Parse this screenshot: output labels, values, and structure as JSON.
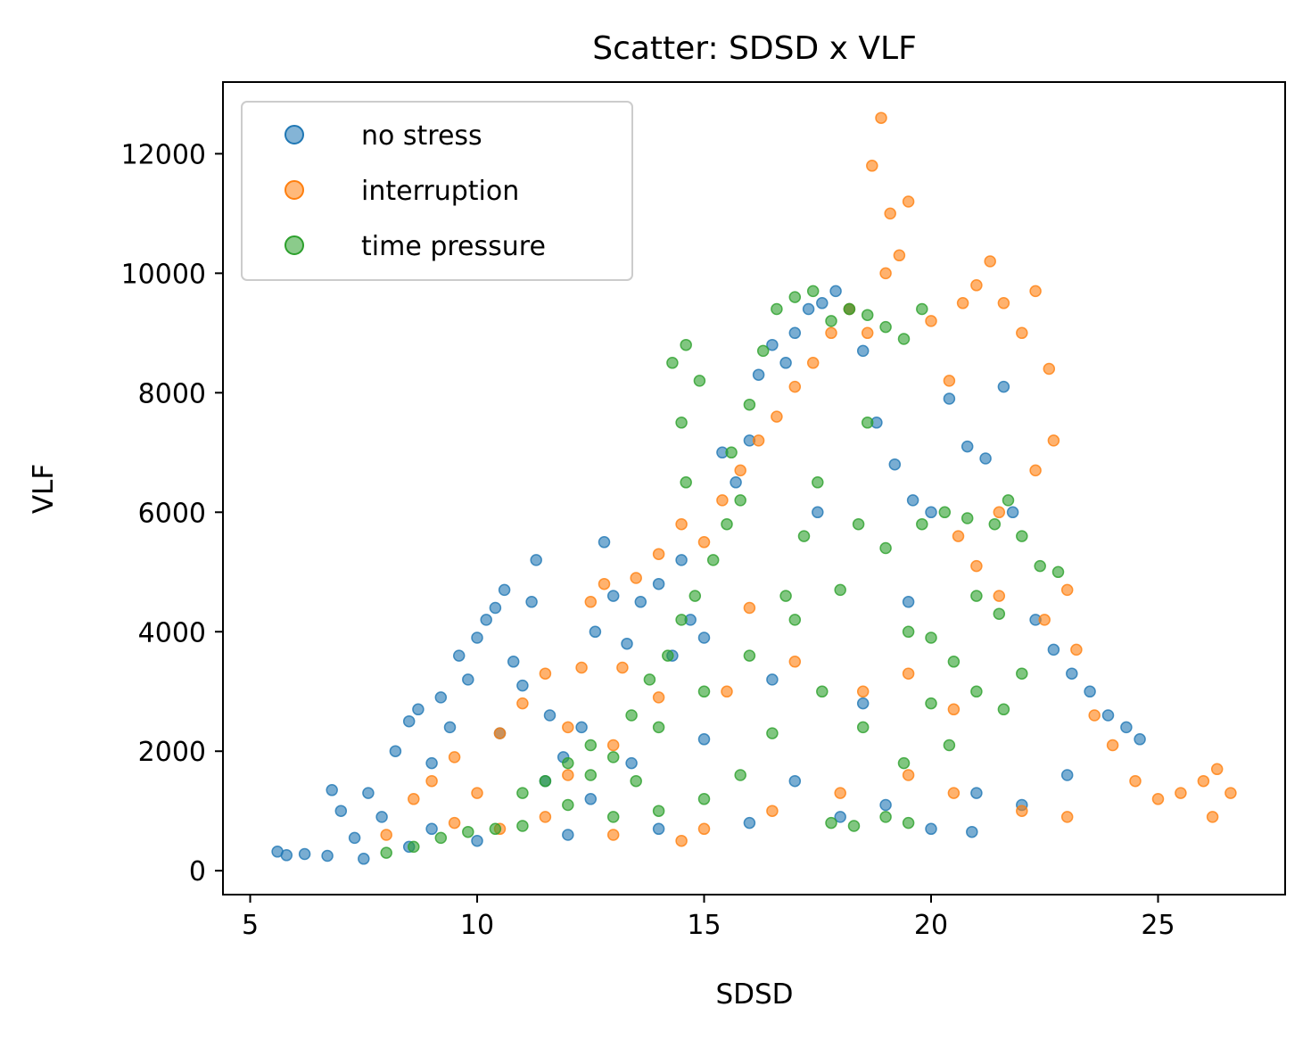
{
  "chart_data": {
    "type": "scatter",
    "title": "Scatter: SDSD x VLF",
    "xlabel": "SDSD",
    "ylabel": "VLF",
    "xlim": [
      4.4,
      27.8
    ],
    "ylim": [
      -400,
      13200
    ],
    "xticks": [
      5,
      10,
      15,
      20,
      25
    ],
    "yticks": [
      0,
      2000,
      4000,
      6000,
      8000,
      10000,
      12000
    ],
    "grid": false,
    "legend_position": "top-left",
    "series": [
      {
        "name": "no stress",
        "color": "#1f77b4",
        "points": [
          [
            5.6,
            320
          ],
          [
            5.8,
            260
          ],
          [
            6.2,
            280
          ],
          [
            6.7,
            250
          ],
          [
            6.8,
            1350
          ],
          [
            7.0,
            1000
          ],
          [
            7.3,
            550
          ],
          [
            7.5,
            200
          ],
          [
            7.6,
            1300
          ],
          [
            7.9,
            900
          ],
          [
            8.2,
            2000
          ],
          [
            8.5,
            2500
          ],
          [
            8.7,
            2700
          ],
          [
            9.0,
            1800
          ],
          [
            9.2,
            2900
          ],
          [
            9.4,
            2400
          ],
          [
            9.6,
            3600
          ],
          [
            9.8,
            3200
          ],
          [
            10.0,
            3900
          ],
          [
            10.2,
            4200
          ],
          [
            10.4,
            4400
          ],
          [
            10.6,
            4700
          ],
          [
            10.8,
            3500
          ],
          [
            11.0,
            3100
          ],
          [
            11.2,
            4500
          ],
          [
            11.3,
            5200
          ],
          [
            11.6,
            2600
          ],
          [
            11.9,
            1900
          ],
          [
            12.3,
            2400
          ],
          [
            12.6,
            4000
          ],
          [
            12.8,
            5500
          ],
          [
            13.0,
            4600
          ],
          [
            13.3,
            3800
          ],
          [
            13.6,
            4500
          ],
          [
            14.0,
            4800
          ],
          [
            14.3,
            3600
          ],
          [
            14.7,
            4200
          ],
          [
            15.0,
            3900
          ],
          [
            15.4,
            7000
          ],
          [
            15.7,
            6500
          ],
          [
            16.0,
            7200
          ],
          [
            16.2,
            8300
          ],
          [
            16.5,
            8800
          ],
          [
            16.8,
            8500
          ],
          [
            17.0,
            9000
          ],
          [
            17.3,
            9400
          ],
          [
            17.6,
            9500
          ],
          [
            17.9,
            9700
          ],
          [
            18.2,
            9400
          ],
          [
            18.5,
            8700
          ],
          [
            18.8,
            7500
          ],
          [
            19.2,
            6800
          ],
          [
            19.6,
            6200
          ],
          [
            20.0,
            6000
          ],
          [
            20.4,
            7900
          ],
          [
            20.8,
            7100
          ],
          [
            21.2,
            6900
          ],
          [
            21.6,
            8100
          ],
          [
            21.8,
            6000
          ],
          [
            22.3,
            4200
          ],
          [
            22.7,
            3700
          ],
          [
            23.1,
            3300
          ],
          [
            23.5,
            3000
          ],
          [
            23.9,
            2600
          ],
          [
            24.3,
            2400
          ],
          [
            24.6,
            2200
          ],
          [
            8.5,
            400
          ],
          [
            10.0,
            500
          ],
          [
            12.0,
            600
          ],
          [
            14.0,
            700
          ],
          [
            16.0,
            800
          ],
          [
            18.0,
            900
          ],
          [
            20.0,
            700
          ],
          [
            20.9,
            650
          ],
          [
            12.5,
            1200
          ],
          [
            13.4,
            1800
          ],
          [
            17.0,
            1500
          ],
          [
            19.0,
            1100
          ],
          [
            9.0,
            700
          ],
          [
            11.5,
            1500
          ],
          [
            15.0,
            2200
          ],
          [
            16.5,
            3200
          ],
          [
            18.5,
            2800
          ],
          [
            21.0,
            1300
          ],
          [
            22.0,
            1100
          ],
          [
            23.0,
            1600
          ],
          [
            14.5,
            5200
          ],
          [
            17.5,
            6000
          ],
          [
            19.5,
            4500
          ],
          [
            10.5,
            2300
          ]
        ]
      },
      {
        "name": "interruption",
        "color": "#ff7f0e",
        "points": [
          [
            8.0,
            600
          ],
          [
            8.6,
            1200
          ],
          [
            9.0,
            1500
          ],
          [
            9.5,
            800
          ],
          [
            10.0,
            1300
          ],
          [
            10.5,
            2300
          ],
          [
            11.0,
            2800
          ],
          [
            11.5,
            3300
          ],
          [
            12.0,
            2400
          ],
          [
            12.3,
            3400
          ],
          [
            12.5,
            4500
          ],
          [
            12.8,
            4800
          ],
          [
            13.2,
            3400
          ],
          [
            13.5,
            4900
          ],
          [
            14.0,
            5300
          ],
          [
            14.5,
            5800
          ],
          [
            15.0,
            5500
          ],
          [
            15.4,
            6200
          ],
          [
            15.8,
            6700
          ],
          [
            16.2,
            7200
          ],
          [
            16.6,
            7600
          ],
          [
            17.0,
            8100
          ],
          [
            17.4,
            8500
          ],
          [
            17.8,
            9000
          ],
          [
            18.2,
            9400
          ],
          [
            18.6,
            9000
          ],
          [
            18.7,
            11800
          ],
          [
            18.9,
            12600
          ],
          [
            19.1,
            11000
          ],
          [
            19.3,
            10300
          ],
          [
            19.5,
            11200
          ],
          [
            19.0,
            10000
          ],
          [
            20.0,
            9200
          ],
          [
            20.4,
            8200
          ],
          [
            20.7,
            9500
          ],
          [
            21.0,
            9800
          ],
          [
            21.3,
            10200
          ],
          [
            21.6,
            9500
          ],
          [
            22.0,
            9000
          ],
          [
            22.3,
            9700
          ],
          [
            22.6,
            8400
          ],
          [
            22.7,
            7200
          ],
          [
            22.3,
            6700
          ],
          [
            21.5,
            6000
          ],
          [
            21.0,
            5100
          ],
          [
            20.6,
            5600
          ],
          [
            21.5,
            4600
          ],
          [
            22.5,
            4200
          ],
          [
            23.0,
            4700
          ],
          [
            23.2,
            3700
          ],
          [
            23.6,
            2600
          ],
          [
            24.0,
            2100
          ],
          [
            24.5,
            1500
          ],
          [
            25.0,
            1200
          ],
          [
            25.5,
            1300
          ],
          [
            26.0,
            1500
          ],
          [
            26.3,
            1700
          ],
          [
            26.6,
            1300
          ],
          [
            26.2,
            900
          ],
          [
            23.0,
            900
          ],
          [
            22.0,
            1000
          ],
          [
            20.5,
            1300
          ],
          [
            19.5,
            1600
          ],
          [
            18.0,
            1300
          ],
          [
            16.5,
            1000
          ],
          [
            15.0,
            700
          ],
          [
            14.5,
            500
          ],
          [
            13.0,
            600
          ],
          [
            11.5,
            900
          ],
          [
            10.5,
            700
          ],
          [
            17.0,
            3500
          ],
          [
            18.5,
            3000
          ],
          [
            16.0,
            4400
          ],
          [
            19.5,
            3300
          ],
          [
            20.5,
            2700
          ],
          [
            14.0,
            2900
          ],
          [
            13.0,
            2100
          ],
          [
            15.5,
            3000
          ],
          [
            12.0,
            1600
          ],
          [
            9.5,
            1900
          ]
        ]
      },
      {
        "name": "time pressure",
        "color": "#2ca02c",
        "points": [
          [
            8.0,
            300
          ],
          [
            8.6,
            400
          ],
          [
            9.2,
            550
          ],
          [
            9.8,
            650
          ],
          [
            10.4,
            700
          ],
          [
            11.0,
            750
          ],
          [
            11.5,
            1500
          ],
          [
            12.0,
            1800
          ],
          [
            12.5,
            2100
          ],
          [
            13.0,
            1900
          ],
          [
            13.4,
            2600
          ],
          [
            13.8,
            3200
          ],
          [
            14.2,
            3600
          ],
          [
            14.5,
            4200
          ],
          [
            14.8,
            4600
          ],
          [
            15.2,
            5200
          ],
          [
            15.5,
            5800
          ],
          [
            15.8,
            6200
          ],
          [
            14.3,
            8500
          ],
          [
            14.6,
            8800
          ],
          [
            14.9,
            8200
          ],
          [
            14.5,
            7500
          ],
          [
            14.6,
            6500
          ],
          [
            15.6,
            7000
          ],
          [
            16.0,
            7800
          ],
          [
            16.3,
            8700
          ],
          [
            16.6,
            9400
          ],
          [
            17.0,
            9600
          ],
          [
            17.4,
            9700
          ],
          [
            17.8,
            9200
          ],
          [
            18.2,
            9400
          ],
          [
            18.6,
            9300
          ],
          [
            19.0,
            9100
          ],
          [
            19.4,
            8900
          ],
          [
            19.8,
            9400
          ],
          [
            18.6,
            7500
          ],
          [
            17.5,
            6500
          ],
          [
            17.2,
            5600
          ],
          [
            16.8,
            4600
          ],
          [
            18.4,
            5800
          ],
          [
            19.0,
            5400
          ],
          [
            19.8,
            5800
          ],
          [
            20.3,
            6000
          ],
          [
            20.8,
            5900
          ],
          [
            21.4,
            5800
          ],
          [
            21.7,
            6200
          ],
          [
            22.0,
            5600
          ],
          [
            22.4,
            5100
          ],
          [
            22.8,
            5000
          ],
          [
            21.0,
            4600
          ],
          [
            21.5,
            4300
          ],
          [
            20.0,
            3900
          ],
          [
            20.5,
            3500
          ],
          [
            21.0,
            3000
          ],
          [
            21.6,
            2700
          ],
          [
            20.4,
            2100
          ],
          [
            19.4,
            1800
          ],
          [
            18.5,
            2400
          ],
          [
            17.6,
            3000
          ],
          [
            16.5,
            2300
          ],
          [
            15.8,
            1600
          ],
          [
            15.0,
            1200
          ],
          [
            14.0,
            1000
          ],
          [
            13.0,
            900
          ],
          [
            12.0,
            1100
          ],
          [
            11.0,
            1300
          ],
          [
            17.8,
            800
          ],
          [
            18.3,
            750
          ],
          [
            19.0,
            900
          ],
          [
            19.5,
            800
          ],
          [
            16.0,
            3600
          ],
          [
            15.0,
            3000
          ],
          [
            14.0,
            2400
          ],
          [
            13.5,
            1500
          ],
          [
            17.0,
            4200
          ],
          [
            18.0,
            4700
          ],
          [
            19.5,
            4000
          ],
          [
            20.0,
            2800
          ],
          [
            22.0,
            3300
          ],
          [
            12.5,
            1600
          ]
        ]
      }
    ]
  }
}
